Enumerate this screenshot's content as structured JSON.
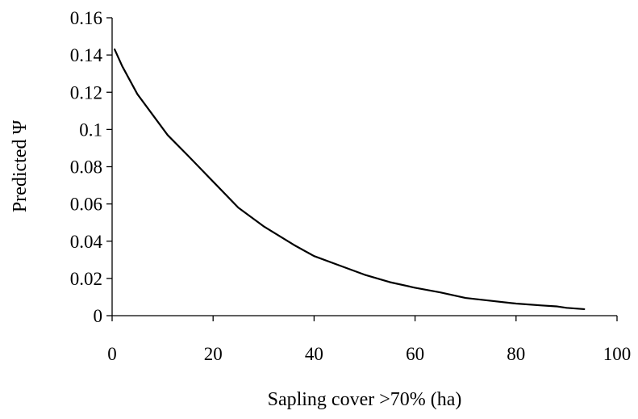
{
  "chart_data": {
    "type": "line",
    "title": "",
    "xlabel": "Sapling cover >70% (ha)",
    "ylabel": "Predicted Ψ",
    "xlim": [
      0,
      100
    ],
    "ylim": [
      0,
      0.16
    ],
    "xticks": [
      0,
      20,
      40,
      60,
      80,
      100
    ],
    "xtick_labels": [
      "0",
      "20",
      "40",
      "60",
      "80",
      "100"
    ],
    "yticks": [
      0,
      0.02,
      0.04,
      0.06,
      0.08,
      0.1,
      0.12,
      0.14,
      0.16
    ],
    "ytick_labels": [
      "0",
      "0.02",
      "0.04",
      "0.06",
      "0.08",
      "0.1",
      "0.12",
      "0.14",
      "0.16"
    ],
    "grid": false,
    "legend": "none",
    "series": [
      {
        "color": "#000000",
        "x": [
          0.5,
          2,
          5,
          8,
          11,
          15,
          20,
          25,
          30,
          33,
          36,
          40,
          45,
          50,
          55,
          60,
          65,
          70,
          75,
          80,
          85,
          88,
          90,
          93.5
        ],
        "y": [
          0.143,
          0.134,
          0.119,
          0.108,
          0.097,
          0.086,
          0.072,
          0.058,
          0.048,
          0.043,
          0.038,
          0.032,
          0.027,
          0.022,
          0.018,
          0.015,
          0.0125,
          0.0095,
          0.008,
          0.0065,
          0.0055,
          0.005,
          0.0042,
          0.0035
        ]
      }
    ]
  }
}
